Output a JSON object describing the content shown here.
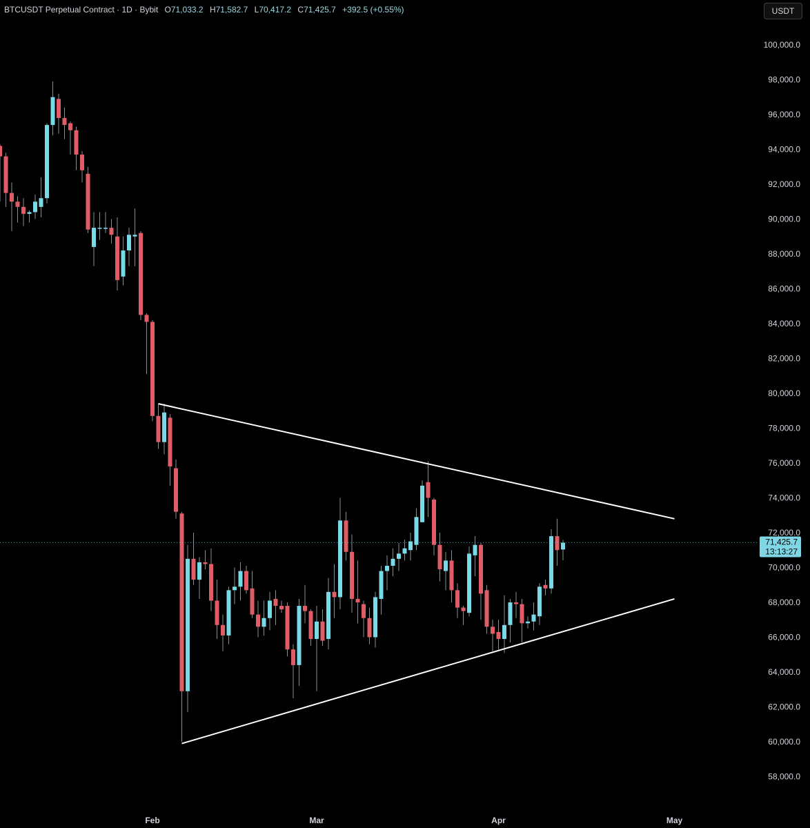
{
  "legend": {
    "symbol": "BTCUSDT Perpetual Contract · 1D · Bybit",
    "o_label": "O",
    "o": "71,033.2",
    "h_label": "H",
    "h": "71,582.7",
    "l_label": "L",
    "l": "70,417.2",
    "c_label": "C",
    "c": "71,425.7",
    "change": "+392.5 (+0.55%)"
  },
  "currency_button": "USDT",
  "colors": {
    "up": "#79d9e6",
    "down": "#e05c66",
    "background": "#000000",
    "trendline": "#ffffff",
    "last_price": "#7fd6e4"
  },
  "chart_data": {
    "type": "candlestick",
    "y_axis": {
      "range": [
        57000,
        101000
      ],
      "ticks": [
        58000,
        60000,
        62000,
        64000,
        66000,
        68000,
        70000,
        72000,
        74000,
        76000,
        78000,
        80000,
        82000,
        84000,
        86000,
        88000,
        90000,
        92000,
        94000,
        96000,
        98000,
        100000
      ],
      "tick_labels": [
        "58,000.0",
        "60,000.0",
        "62,000.0",
        "64,000.0",
        "66,000.0",
        "68,000.0",
        "70,000.0",
        "72,000.0",
        "74,000.0",
        "76,000.0",
        "78,000.0",
        "80,000.0",
        "82,000.0",
        "84,000.0",
        "86,000.0",
        "88,000.0",
        "90,000.0",
        "92,000.0",
        "94,000.0",
        "96,000.0",
        "98,000.0",
        "100,000.0"
      ]
    },
    "x_axis": {
      "labels": [
        {
          "text": "Feb",
          "day": 0
        },
        {
          "text": "Mar",
          "day": 28
        },
        {
          "text": "Apr",
          "day": 59
        },
        {
          "text": "May",
          "day": 89
        }
      ]
    },
    "last_price": {
      "value": 71425.7,
      "label": "71,425.7",
      "countdown": "13:13:27"
    },
    "candles": [
      {
        "day": -26,
        "o": 94200,
        "h": 94300,
        "l": 91000,
        "c": 93600
      },
      {
        "day": -25,
        "o": 93600,
        "h": 93800,
        "l": 90700,
        "c": 91500
      },
      {
        "day": -24,
        "o": 91500,
        "h": 92100,
        "l": 89300,
        "c": 91000
      },
      {
        "day": -23,
        "o": 91000,
        "h": 91300,
        "l": 89800,
        "c": 90700
      },
      {
        "day": -22,
        "o": 90700,
        "h": 91200,
        "l": 89600,
        "c": 90300
      },
      {
        "day": -21,
        "o": 90300,
        "h": 90500,
        "l": 89800,
        "c": 90400
      },
      {
        "day": -20,
        "o": 90400,
        "h": 91400,
        "l": 90000,
        "c": 91000
      },
      {
        "day": -19,
        "o": 90700,
        "h": 92400,
        "l": 90100,
        "c": 91200
      },
      {
        "day": -18,
        "o": 91200,
        "h": 95500,
        "l": 90900,
        "c": 95400
      },
      {
        "day": -17,
        "o": 95400,
        "h": 97900,
        "l": 94800,
        "c": 97000
      },
      {
        "day": -16,
        "o": 96900,
        "h": 97200,
        "l": 94900,
        "c": 95800
      },
      {
        "day": -15,
        "o": 95800,
        "h": 96400,
        "l": 94600,
        "c": 95400
      },
      {
        "day": -14,
        "o": 95500,
        "h": 95600,
        "l": 93700,
        "c": 95100
      },
      {
        "day": -13,
        "o": 95100,
        "h": 95300,
        "l": 92800,
        "c": 93700
      },
      {
        "day": -12,
        "o": 93700,
        "h": 93900,
        "l": 92100,
        "c": 92800
      },
      {
        "day": -11,
        "o": 92600,
        "h": 93000,
        "l": 89200,
        "c": 89400
      },
      {
        "day": -10,
        "o": 88400,
        "h": 90400,
        "l": 87300,
        "c": 89500
      },
      {
        "day": -9,
        "o": 89500,
        "h": 90400,
        "l": 88800,
        "c": 89500
      },
      {
        "day": -8,
        "o": 89500,
        "h": 90400,
        "l": 89200,
        "c": 89500
      },
      {
        "day": -7,
        "o": 89500,
        "h": 90000,
        "l": 88600,
        "c": 89100
      },
      {
        "day": -6,
        "o": 89000,
        "h": 90100,
        "l": 85900,
        "c": 86500
      },
      {
        "day": -5,
        "o": 86700,
        "h": 89000,
        "l": 86200,
        "c": 88200
      },
      {
        "day": -4,
        "o": 88200,
        "h": 89500,
        "l": 87300,
        "c": 89100
      },
      {
        "day": -3,
        "o": 89000,
        "h": 90600,
        "l": 87300,
        "c": 89100
      },
      {
        "day": -2,
        "o": 89200,
        "h": 89300,
        "l": 84200,
        "c": 84500
      },
      {
        "day": -1,
        "o": 84500,
        "h": 84600,
        "l": 81100,
        "c": 84100
      },
      {
        "day": 0,
        "o": 84100,
        "h": 84200,
        "l": 78400,
        "c": 78700
      },
      {
        "day": 1,
        "o": 78700,
        "h": 79400,
        "l": 76800,
        "c": 77200
      },
      {
        "day": 2,
        "o": 77200,
        "h": 79400,
        "l": 76500,
        "c": 78900
      },
      {
        "day": 3,
        "o": 78600,
        "h": 78800,
        "l": 74700,
        "c": 75800
      },
      {
        "day": 4,
        "o": 75700,
        "h": 76200,
        "l": 72800,
        "c": 73200
      },
      {
        "day": 5,
        "o": 73100,
        "h": 73200,
        "l": 60000,
        "c": 62900
      },
      {
        "day": 6,
        "o": 62900,
        "h": 71300,
        "l": 61700,
        "c": 70500
      },
      {
        "day": 7,
        "o": 70500,
        "h": 72000,
        "l": 69000,
        "c": 69300
      },
      {
        "day": 8,
        "o": 69300,
        "h": 70600,
        "l": 68200,
        "c": 70300
      },
      {
        "day": 9,
        "o": 70300,
        "h": 71000,
        "l": 69900,
        "c": 70200
      },
      {
        "day": 10,
        "o": 70200,
        "h": 71100,
        "l": 67500,
        "c": 68100
      },
      {
        "day": 11,
        "o": 68100,
        "h": 69300,
        "l": 65900,
        "c": 66700
      },
      {
        "day": 12,
        "o": 66700,
        "h": 67300,
        "l": 65200,
        "c": 66100
      },
      {
        "day": 13,
        "o": 66100,
        "h": 68900,
        "l": 65600,
        "c": 68700
      },
      {
        "day": 14,
        "o": 68700,
        "h": 70000,
        "l": 67900,
        "c": 68900
      },
      {
        "day": 15,
        "o": 68900,
        "h": 70300,
        "l": 68100,
        "c": 69800
      },
      {
        "day": 16,
        "o": 69800,
        "h": 70100,
        "l": 68500,
        "c": 68700
      },
      {
        "day": 17,
        "o": 68800,
        "h": 69800,
        "l": 67100,
        "c": 67300
      },
      {
        "day": 18,
        "o": 67300,
        "h": 68100,
        "l": 66000,
        "c": 66600
      },
      {
        "day": 19,
        "o": 66600,
        "h": 68100,
        "l": 66100,
        "c": 67100
      },
      {
        "day": 20,
        "o": 67100,
        "h": 68600,
        "l": 66400,
        "c": 68100
      },
      {
        "day": 21,
        "o": 68200,
        "h": 68700,
        "l": 66700,
        "c": 67800
      },
      {
        "day": 22,
        "o": 67800,
        "h": 68100,
        "l": 67400,
        "c": 67600
      },
      {
        "day": 23,
        "o": 67800,
        "h": 68000,
        "l": 64900,
        "c": 65300
      },
      {
        "day": 24,
        "o": 65300,
        "h": 65600,
        "l": 62500,
        "c": 64400
      },
      {
        "day": 25,
        "o": 64400,
        "h": 68200,
        "l": 63200,
        "c": 67800
      },
      {
        "day": 26,
        "o": 67800,
        "h": 69000,
        "l": 66800,
        "c": 67500
      },
      {
        "day": 27,
        "o": 67500,
        "h": 67600,
        "l": 65500,
        "c": 65900
      },
      {
        "day": 28,
        "o": 65900,
        "h": 67800,
        "l": 62900,
        "c": 66900
      },
      {
        "day": 29,
        "o": 66900,
        "h": 67600,
        "l": 65500,
        "c": 65800
      },
      {
        "day": 30,
        "o": 65900,
        "h": 69400,
        "l": 65300,
        "c": 68600
      },
      {
        "day": 31,
        "o": 68600,
        "h": 70200,
        "l": 67100,
        "c": 68300
      },
      {
        "day": 32,
        "o": 68300,
        "h": 74000,
        "l": 67600,
        "c": 72700
      },
      {
        "day": 33,
        "o": 72700,
        "h": 73200,
        "l": 70400,
        "c": 70900
      },
      {
        "day": 34,
        "o": 70900,
        "h": 71900,
        "l": 67400,
        "c": 68200
      },
      {
        "day": 35,
        "o": 68200,
        "h": 70400,
        "l": 66800,
        "c": 68000
      },
      {
        "day": 36,
        "o": 67900,
        "h": 68100,
        "l": 66000,
        "c": 67100
      },
      {
        "day": 37,
        "o": 67100,
        "h": 67700,
        "l": 65600,
        "c": 66000
      },
      {
        "day": 38,
        "o": 66000,
        "h": 68600,
        "l": 65400,
        "c": 68300
      },
      {
        "day": 39,
        "o": 68200,
        "h": 70100,
        "l": 67300,
        "c": 69800
      },
      {
        "day": 40,
        "o": 69800,
        "h": 70700,
        "l": 68700,
        "c": 70100
      },
      {
        "day": 41,
        "o": 70100,
        "h": 71100,
        "l": 69500,
        "c": 70500
      },
      {
        "day": 42,
        "o": 70500,
        "h": 71400,
        "l": 69800,
        "c": 70800
      },
      {
        "day": 43,
        "o": 70800,
        "h": 71600,
        "l": 70400,
        "c": 71100
      },
      {
        "day": 44,
        "o": 71000,
        "h": 72000,
        "l": 70400,
        "c": 71500
      },
      {
        "day": 45,
        "o": 71300,
        "h": 73400,
        "l": 71000,
        "c": 72900
      },
      {
        "day": 46,
        "o": 72600,
        "h": 75000,
        "l": 72600,
        "c": 74700
      },
      {
        "day": 47,
        "o": 74900,
        "h": 76100,
        "l": 72900,
        "c": 74000
      },
      {
        "day": 48,
        "o": 73900,
        "h": 74000,
        "l": 70700,
        "c": 71300
      },
      {
        "day": 49,
        "o": 71300,
        "h": 72000,
        "l": 69200,
        "c": 69900
      },
      {
        "day": 50,
        "o": 69800,
        "h": 70900,
        "l": 68700,
        "c": 70400
      },
      {
        "day": 51,
        "o": 70400,
        "h": 71000,
        "l": 68000,
        "c": 68700
      },
      {
        "day": 52,
        "o": 68700,
        "h": 69100,
        "l": 67100,
        "c": 67700
      },
      {
        "day": 53,
        "o": 67700,
        "h": 67800,
        "l": 66700,
        "c": 67500
      },
      {
        "day": 54,
        "o": 67400,
        "h": 71200,
        "l": 67200,
        "c": 70800
      },
      {
        "day": 55,
        "o": 70700,
        "h": 71800,
        "l": 69500,
        "c": 71300
      },
      {
        "day": 56,
        "o": 71300,
        "h": 71400,
        "l": 67000,
        "c": 68500
      },
      {
        "day": 57,
        "o": 68700,
        "h": 69000,
        "l": 66200,
        "c": 66600
      },
      {
        "day": 58,
        "o": 66600,
        "h": 67000,
        "l": 65200,
        "c": 66200
      },
      {
        "day": 59,
        "o": 66300,
        "h": 67000,
        "l": 65300,
        "c": 65900
      },
      {
        "day": 60,
        "o": 65900,
        "h": 68400,
        "l": 65100,
        "c": 66700
      },
      {
        "day": 61,
        "o": 66700,
        "h": 68200,
        "l": 65700,
        "c": 68000
      },
      {
        "day": 62,
        "o": 68000,
        "h": 68600,
        "l": 67100,
        "c": 67900
      },
      {
        "day": 63,
        "o": 67900,
        "h": 68200,
        "l": 65700,
        "c": 66800
      },
      {
        "day": 64,
        "o": 66800,
        "h": 67200,
        "l": 66500,
        "c": 66900
      },
      {
        "day": 65,
        "o": 66900,
        "h": 68000,
        "l": 66400,
        "c": 67300
      },
      {
        "day": 66,
        "o": 67200,
        "h": 69100,
        "l": 66700,
        "c": 68900
      },
      {
        "day": 67,
        "o": 69000,
        "h": 69300,
        "l": 68400,
        "c": 68800
      },
      {
        "day": 68,
        "o": 68800,
        "h": 72200,
        "l": 68500,
        "c": 71800
      },
      {
        "day": 69,
        "o": 71800,
        "h": 72800,
        "l": 70100,
        "c": 71000
      },
      {
        "day": 70,
        "o": 71033.2,
        "h": 71582.7,
        "l": 70417.2,
        "c": 71425.7
      }
    ],
    "trendlines": [
      {
        "name": "upper",
        "from": {
          "day": 1,
          "price": 79400
        },
        "to": {
          "day": 89,
          "price": 72800
        }
      },
      {
        "name": "lower",
        "from": {
          "day": 5,
          "price": 59900
        },
        "to": {
          "day": 89,
          "price": 68200
        }
      }
    ]
  }
}
